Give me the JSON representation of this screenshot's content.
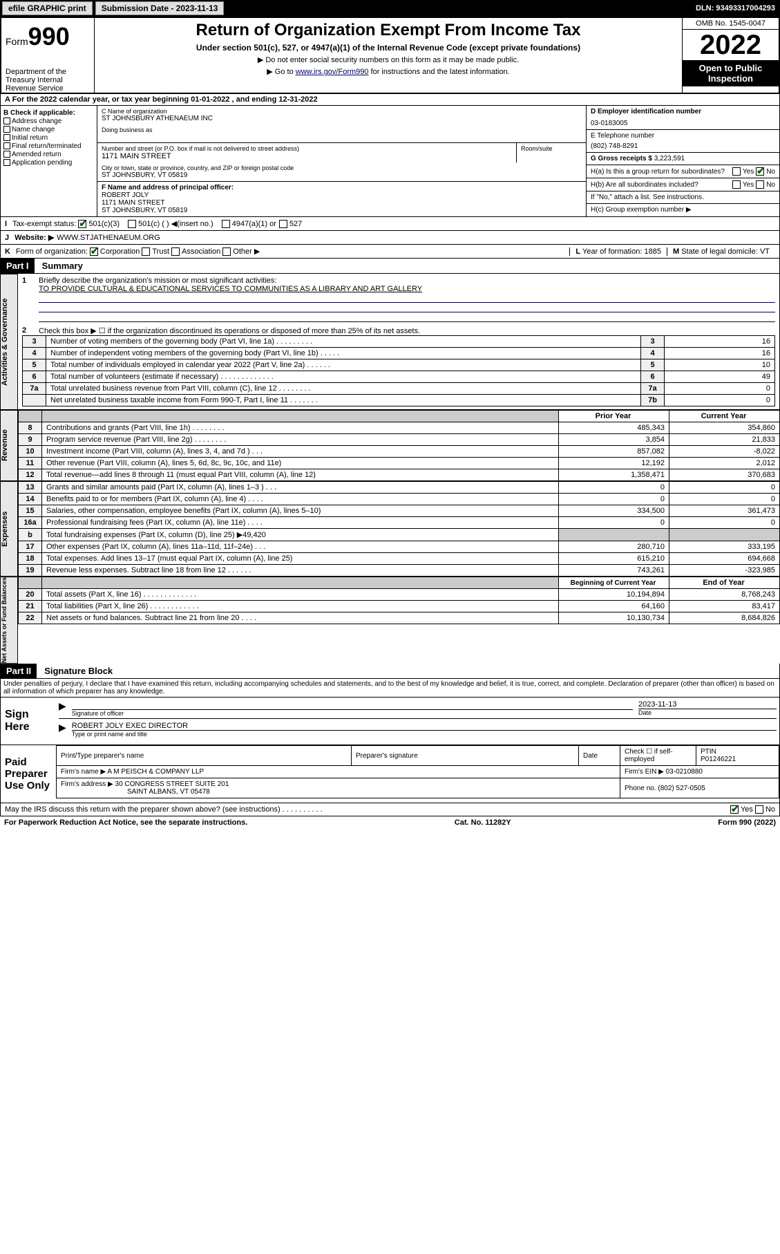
{
  "topbar": {
    "btn1": "efile GRAPHIC print",
    "sub_label": "Submission Date - 2023-11-13",
    "dln": "DLN: 93493317004293"
  },
  "header": {
    "form_prefix": "Form",
    "form_num": "990",
    "dept": "Department of the Treasury Internal Revenue Service",
    "title": "Return of Organization Exempt From Income Tax",
    "sub": "Under section 501(c), 527, or 4947(a)(1) of the Internal Revenue Code (except private foundations)",
    "note1": "▶ Do not enter social security numbers on this form as it may be made public.",
    "note2_pre": "▶ Go to ",
    "note2_link": "www.irs.gov/Form990",
    "note2_post": " for instructions and the latest information.",
    "omb": "OMB No. 1545-0047",
    "year": "2022",
    "inspect": "Open to Public Inspection"
  },
  "row_a": "A For the 2022 calendar year, or tax year beginning 01-01-2022   , and ending 12-31-2022",
  "col_b": {
    "title": "B Check if applicable:",
    "items": [
      "Address change",
      "Name change",
      "Initial return",
      "Final return/terminated",
      "Amended return",
      "Application pending"
    ]
  },
  "col_c": {
    "name_label": "C Name of organization",
    "name": "ST JOHNSBURY ATHENAEUM INC",
    "dba_label": "Doing business as",
    "addr_label": "Number and street (or P.O. box if mail is not delivered to street address)",
    "room_label": "Room/suite",
    "addr": "1171 MAIN STREET",
    "city_label": "City or town, state or province, country, and ZIP or foreign postal code",
    "city": "ST JOHNSBURY, VT  05819",
    "officer_label": "F  Name and address of principal officer:",
    "officer_name": "ROBERT JOLY",
    "officer_addr1": "1171 MAIN STREET",
    "officer_addr2": "ST JOHNSBURY, VT  05819"
  },
  "col_d": {
    "ein_label": "D Employer identification number",
    "ein": "03-0183005",
    "phone_label": "E Telephone number",
    "phone": "(802) 748-8291",
    "gross_label": "G Gross receipts $",
    "gross": "3,223,591",
    "ha": "H(a)  Is this a group return for subordinates?",
    "hb": "H(b)  Are all subordinates included?",
    "hb_note": "If \"No,\" attach a list. See instructions.",
    "hc": "H(c)  Group exemption number ▶",
    "yes": "Yes",
    "no": "No"
  },
  "row_i": {
    "label": "I",
    "text": "Tax-exempt status:",
    "opt1": "501(c)(3)",
    "opt2": "501(c) (  ) ◀(insert no.)",
    "opt3": "4947(a)(1) or",
    "opt4": "527"
  },
  "row_j": {
    "label": "J",
    "text": "Website: ▶",
    "val": "WWW.STJATHENAEUM.ORG"
  },
  "row_k": {
    "label": "K",
    "text": "Form of organization:",
    "opts": [
      "Corporation",
      "Trust",
      "Association",
      "Other ▶"
    ],
    "l_label": "L",
    "l_text": "Year of formation:",
    "l_val": "1885",
    "m_label": "M",
    "m_text": "State of legal domicile:",
    "m_val": "VT"
  },
  "part1": {
    "hdr": "Part I",
    "title": "Summary",
    "q1_label": "1",
    "q1": "Briefly describe the organization's mission or most significant activities:",
    "q1_val": "TO PROVIDE CULTURAL & EDUCATIONAL SERVICES TO COMMUNITIES AS A LIBRARY AND ART GALLERY",
    "q2_label": "2",
    "q2": "Check this box ▶ ☐  if the organization discontinued its operations or disposed of more than 25% of its net assets.",
    "rows_gov": [
      {
        "n": "3",
        "t": "Number of voting members of the governing body (Part VI, line 1a)  .   .   .   .   .   .   .   .   .",
        "k": "3",
        "v": "16"
      },
      {
        "n": "4",
        "t": "Number of independent voting members of the governing body (Part VI, line 1b)  .   .   .   .   .",
        "k": "4",
        "v": "16"
      },
      {
        "n": "5",
        "t": "Total number of individuals employed in calendar year 2022 (Part V, line 2a)  .   .   .   .   .   .",
        "k": "5",
        "v": "10"
      },
      {
        "n": "6",
        "t": "Total number of volunteers (estimate if necessary)  .   .   .   .   .   .   .   .   .   .   .   .   .",
        "k": "6",
        "v": "49"
      },
      {
        "n": "7a",
        "t": "Total unrelated business revenue from Part VIII, column (C), line 12  .   .   .   .   .   .   .   .",
        "k": "7a",
        "v": "0"
      },
      {
        "n": "",
        "t": "Net unrelated business taxable income from Form 990-T, Part I, line 11  .   .   .   .   .   .   .",
        "k": "7b",
        "v": "0"
      }
    ],
    "col_hdr_prior": "Prior Year",
    "col_hdr_curr": "Current Year",
    "rows_rev": [
      {
        "n": "8",
        "t": "Contributions and grants (Part VIII, line 1h)  .   .   .   .   .   .   .   .",
        "p": "485,343",
        "c": "354,860"
      },
      {
        "n": "9",
        "t": "Program service revenue (Part VIII, line 2g)  .   .   .   .   .   .   .   .",
        "p": "3,854",
        "c": "21,833"
      },
      {
        "n": "10",
        "t": "Investment income (Part VIII, column (A), lines 3, 4, and 7d )  .   .   .",
        "p": "857,082",
        "c": "-8,022"
      },
      {
        "n": "11",
        "t": "Other revenue (Part VIII, column (A), lines 5, 6d, 8c, 9c, 10c, and 11e)",
        "p": "12,192",
        "c": "2,012"
      },
      {
        "n": "12",
        "t": "Total revenue—add lines 8 through 11 (must equal Part VIII, column (A), line 12)",
        "p": "1,358,471",
        "c": "370,683"
      }
    ],
    "rows_exp": [
      {
        "n": "13",
        "t": "Grants and similar amounts paid (Part IX, column (A), lines 1–3 )  .   .   .",
        "p": "0",
        "c": "0"
      },
      {
        "n": "14",
        "t": "Benefits paid to or for members (Part IX, column (A), line 4)  .   .   .   .",
        "p": "0",
        "c": "0"
      },
      {
        "n": "15",
        "t": "Salaries, other compensation, employee benefits (Part IX, column (A), lines 5–10)",
        "p": "334,500",
        "c": "361,473"
      },
      {
        "n": "16a",
        "t": "Professional fundraising fees (Part IX, column (A), line 11e)  .   .   .   .",
        "p": "0",
        "c": "0"
      },
      {
        "n": "b",
        "t": "Total fundraising expenses (Part IX, column (D), line 25) ▶49,420",
        "p": "",
        "c": ""
      },
      {
        "n": "17",
        "t": "Other expenses (Part IX, column (A), lines 11a–11d, 11f–24e)  .   .   .",
        "p": "280,710",
        "c": "333,195"
      },
      {
        "n": "18",
        "t": "Total expenses. Add lines 13–17 (must equal Part IX, column (A), line 25)",
        "p": "615,210",
        "c": "694,668"
      },
      {
        "n": "19",
        "t": "Revenue less expenses. Subtract line 18 from line 12  .   .   .   .   .   .",
        "p": "743,261",
        "c": "-323,985"
      }
    ],
    "col_hdr_beg": "Beginning of Current Year",
    "col_hdr_end": "End of Year",
    "rows_net": [
      {
        "n": "20",
        "t": "Total assets (Part X, line 16)  .   .   .   .   .   .   .   .   .   .   .   .   .",
        "p": "10,194,894",
        "c": "8,768,243"
      },
      {
        "n": "21",
        "t": "Total liabilities (Part X, line 26)  .   .   .   .   .   .   .   .   .   .   .   .",
        "p": "64,160",
        "c": "83,417"
      },
      {
        "n": "22",
        "t": "Net assets or fund balances. Subtract line 21 from line 20  .   .   .   .",
        "p": "10,130,734",
        "c": "8,684,826"
      }
    ],
    "tabs": [
      "Activities & Governance",
      "Revenue",
      "Expenses",
      "Net Assets or Fund Balances"
    ]
  },
  "part2": {
    "hdr": "Part II",
    "title": "Signature Block",
    "decl": "Under penalties of perjury, I declare that I have examined this return, including accompanying schedules and statements, and to the best of my knowledge and belief, it is true, correct, and complete. Declaration of preparer (other than officer) is based on all information of which preparer has any knowledge.",
    "sign_here": "Sign Here",
    "sig_officer": "Signature of officer",
    "sig_date_label": "Date",
    "sig_date": "2023-11-13",
    "sig_name": "ROBERT JOLY EXEC DIRECTOR",
    "sig_name_label": "Type or print name and title",
    "paid_label": "Paid Preparer Use Only",
    "prep_name_label": "Print/Type preparer's name",
    "prep_sig_label": "Preparer's signature",
    "prep_date_label": "Date",
    "prep_check": "Check ☐ if self-employed",
    "ptin_label": "PTIN",
    "ptin": "P01246221",
    "firm_name_label": "Firm's name    ▶",
    "firm_name": "A M PEISCH & COMPANY LLP",
    "firm_ein_label": "Firm's EIN ▶",
    "firm_ein": "03-0210880",
    "firm_addr_label": "Firm's address ▶",
    "firm_addr1": "30 CONGRESS STREET SUITE 201",
    "firm_addr2": "SAINT ALBANS, VT  05478",
    "firm_phone_label": "Phone no.",
    "firm_phone": "(802) 527-0505",
    "discuss": "May the IRS discuss this return with the preparer shown above? (see instructions)  .   .   .   .   .   .   .   .   .   .",
    "discuss_yes": "Yes",
    "discuss_no": "No"
  },
  "footer": {
    "left": "For Paperwork Reduction Act Notice, see the separate instructions.",
    "mid": "Cat. No. 11282Y",
    "right": "Form 990 (2022)"
  }
}
